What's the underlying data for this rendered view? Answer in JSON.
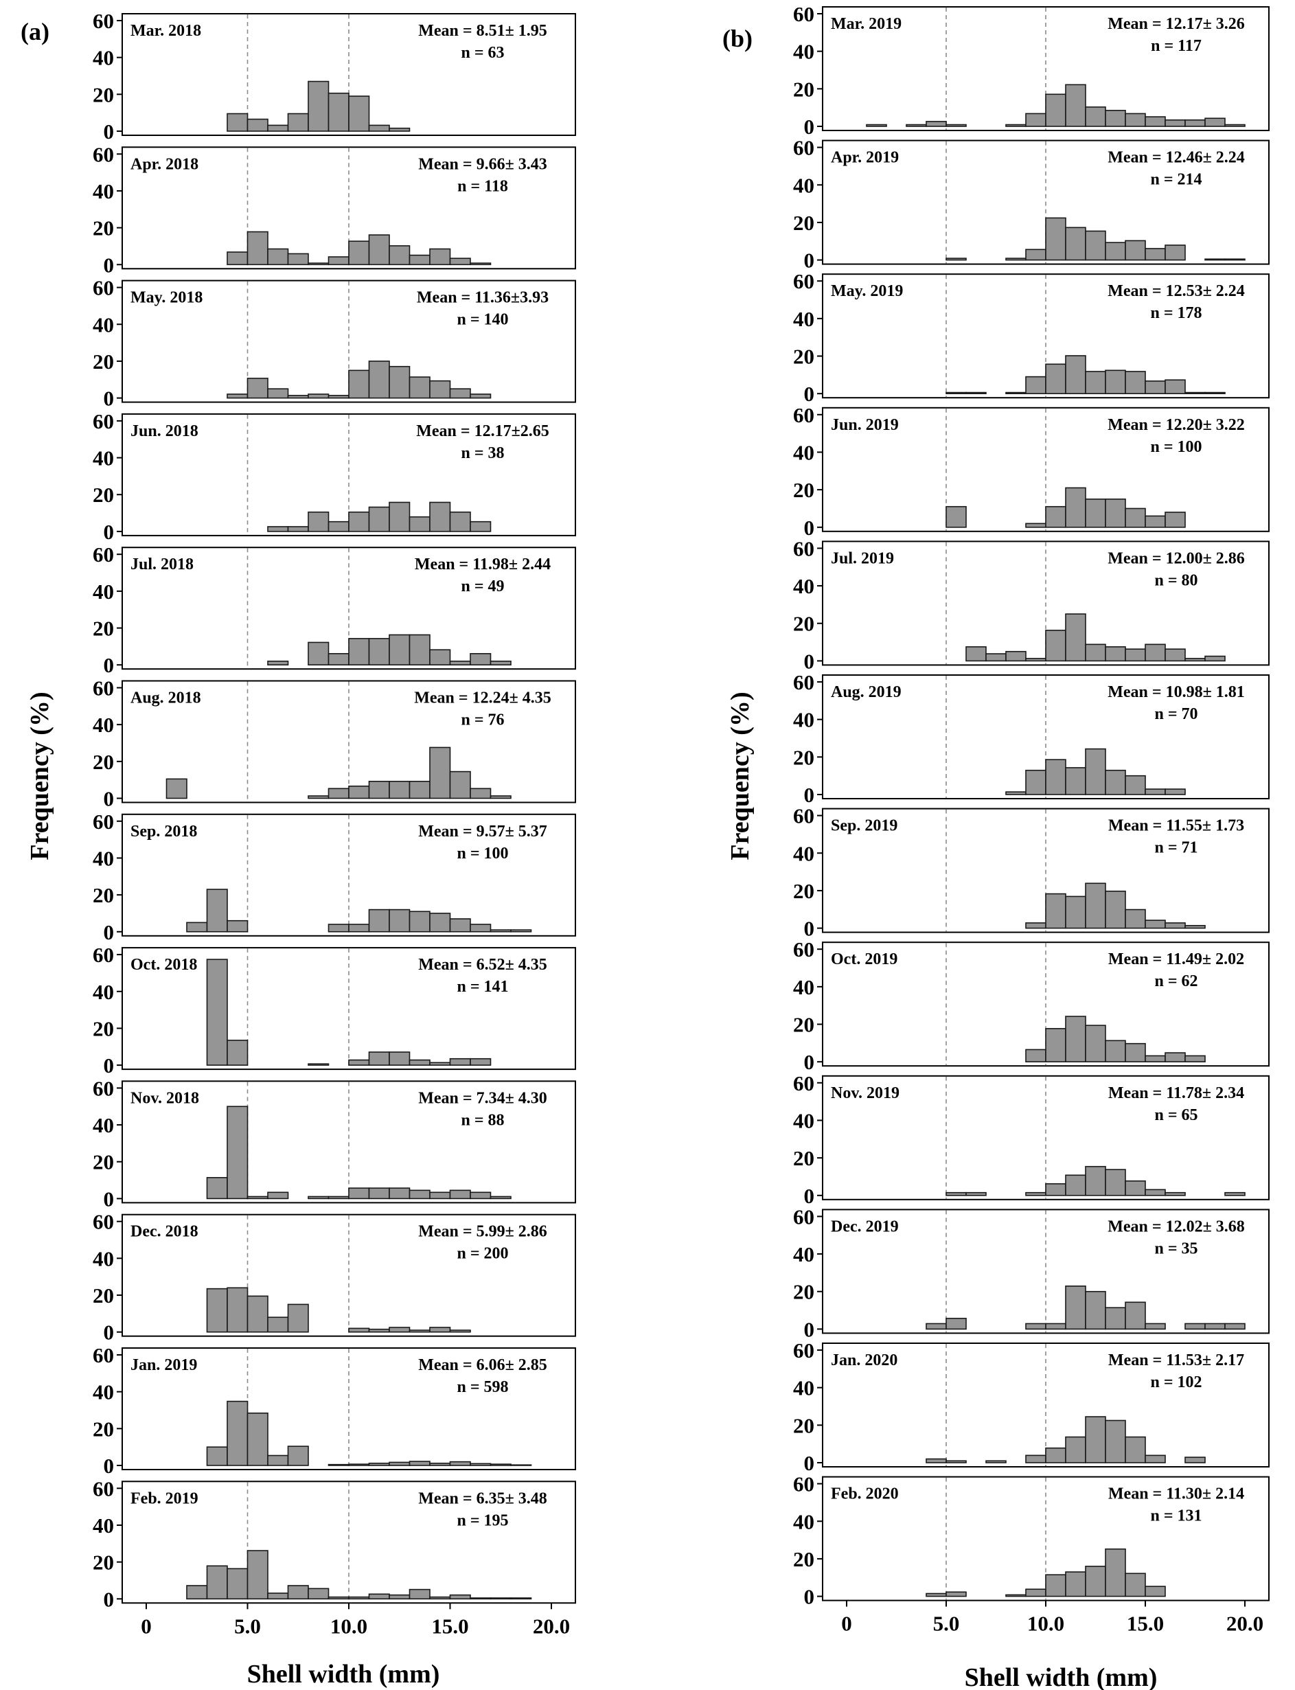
{
  "figure": {
    "y_axis_title": "Frequency (%)",
    "x_axis_title": "Shell width (mm)",
    "x_tick_labels": [
      "0",
      "5.0",
      "10.0",
      "15.0",
      "20.0"
    ],
    "y_tick_labels": [
      "0",
      "20",
      "40",
      "60"
    ],
    "bar_color": "#959595",
    "reference_line_color": "#8a8a8a"
  },
  "chart_data": [
    {
      "panel": "(a)",
      "type": "bar",
      "bin_width_mm": 1,
      "bin_starts": [
        0,
        1,
        2,
        3,
        4,
        5,
        6,
        7,
        8,
        9,
        10,
        11,
        12,
        13,
        14,
        15,
        16,
        17,
        18,
        19
      ],
      "xlim": [
        0,
        20
      ],
      "ylim": [
        0,
        60
      ],
      "reference_lines": [
        5,
        10
      ],
      "xlabel": "Shell width (mm)",
      "ylabel": "Frequency (%)",
      "series": [
        {
          "name": "Mar. 2018",
          "mean": "Mean = 8.51± 1.95",
          "n": "n = 63",
          "values": [
            0,
            0,
            0,
            0,
            9.5,
            6.5,
            3.2,
            9.5,
            27,
            20.6,
            19,
            3.2,
            1.6,
            0,
            0,
            0,
            0,
            0,
            0,
            0
          ]
        },
        {
          "name": "Apr. 2018",
          "mean": "Mean = 9.66± 3.43",
          "n": "n = 118",
          "values": [
            0,
            0,
            0,
            0,
            6.8,
            17.8,
            8.5,
            5.9,
            0.8,
            4.2,
            12.7,
            16.1,
            10.2,
            5.1,
            8.5,
            3.4,
            0.8,
            0,
            0,
            0
          ]
        },
        {
          "name": "May. 2018",
          "mean": "Mean = 11.36±3.93",
          "n": "n = 140",
          "values": [
            0,
            0,
            0,
            0,
            2.1,
            10.7,
            5,
            1.4,
            2.1,
            1.4,
            15,
            20,
            17.1,
            11.4,
            9.3,
            5,
            2.1,
            0,
            0,
            0
          ]
        },
        {
          "name": "Jun. 2018",
          "mean": "Mean = 12.17±2.65",
          "n": "n = 38",
          "values": [
            0,
            0,
            0,
            0,
            0,
            0,
            2.6,
            2.6,
            10.5,
            5.3,
            10.5,
            13.2,
            15.8,
            7.9,
            15.8,
            10.5,
            5.3,
            0,
            0,
            0
          ]
        },
        {
          "name": "Jul. 2018",
          "mean": "Mean = 11.98± 2.44",
          "n": "n = 49",
          "values": [
            0,
            0,
            0,
            0,
            0,
            0,
            2,
            0,
            12.2,
            6.1,
            14.3,
            14.3,
            16.3,
            16.3,
            8.2,
            2,
            6.1,
            2,
            0,
            0
          ]
        },
        {
          "name": "Aug. 2018",
          "mean": "Mean = 12.24± 4.35",
          "n": "n = 76",
          "values": [
            0,
            10.5,
            0,
            0,
            0,
            0,
            0,
            0,
            1.3,
            5.3,
            6.6,
            9.2,
            9.2,
            9.2,
            27.6,
            14.5,
            5.3,
            1.3,
            0,
            0
          ]
        },
        {
          "name": "Sep. 2018",
          "mean": "Mean = 9.57± 5.37",
          "n": "n = 100",
          "values": [
            0,
            0,
            5,
            23,
            6,
            0,
            0,
            0,
            0,
            4,
            4,
            12,
            12,
            11,
            10,
            7,
            4,
            1,
            1,
            0
          ]
        },
        {
          "name": "Oct. 2018",
          "mean": "Mean = 6.52± 4.35",
          "n": "n = 141",
          "values": [
            0,
            0,
            0,
            57.4,
            13.5,
            0,
            0,
            0,
            0.7,
            0,
            2.8,
            7.1,
            7.1,
            2.8,
            1.4,
            3.5,
            3.5,
            0,
            0,
            0
          ]
        },
        {
          "name": "Nov. 2018",
          "mean": "Mean = 7.34± 4.30",
          "n": "n = 88",
          "values": [
            0,
            0,
            0,
            11.4,
            50,
            1.1,
            3.4,
            0,
            1.1,
            1.1,
            5.7,
            5.7,
            5.7,
            4.5,
            3.4,
            4.5,
            3.4,
            1.1,
            0,
            0
          ]
        },
        {
          "name": "Dec. 2018",
          "mean": "Mean = 5.99± 2.86",
          "n": "n = 200",
          "values": [
            0,
            0,
            0,
            23.5,
            24,
            19.5,
            8,
            15,
            0,
            0,
            2,
            1.5,
            2.5,
            1,
            2.5,
            1,
            0,
            0,
            0,
            0
          ]
        },
        {
          "name": "Jan. 2019",
          "mean": "Mean = 6.06± 2.85",
          "n": "n = 598",
          "values": [
            0,
            0,
            0,
            10,
            34.8,
            28.4,
            5.4,
            10.4,
            0,
            0.5,
            0.7,
            1.2,
            1.7,
            2.2,
            1.2,
            2,
            1,
            0.7,
            0.3,
            0
          ]
        },
        {
          "name": "Feb. 2019",
          "mean": "Mean = 6.35± 3.48",
          "n": "n = 195",
          "values": [
            0,
            0,
            7.2,
            17.9,
            16.4,
            26.2,
            3.1,
            7.2,
            5.6,
            1,
            1,
            2.6,
            2.1,
            5.1,
            1,
            2.1,
            0.5,
            0.5,
            0.5,
            0
          ]
        }
      ]
    },
    {
      "panel": "(b)",
      "type": "bar",
      "bin_width_mm": 1,
      "bin_starts": [
        0,
        1,
        2,
        3,
        4,
        5,
        6,
        7,
        8,
        9,
        10,
        11,
        12,
        13,
        14,
        15,
        16,
        17,
        18,
        19
      ],
      "xlim": [
        0,
        20
      ],
      "ylim": [
        0,
        60
      ],
      "reference_lines": [
        5,
        10
      ],
      "xlabel": "Shell width (mm)",
      "ylabel": "Frequency (%)",
      "series": [
        {
          "name": "Mar. 2019",
          "mean": "Mean = 12.17± 3.26",
          "n": "n = 117",
          "values": [
            0,
            0.9,
            0,
            0.9,
            2.6,
            0.9,
            0,
            0,
            0.9,
            6.8,
            17.1,
            22.2,
            10.3,
            8.5,
            6.8,
            5.1,
            3.4,
            3.4,
            4.3,
            0.9
          ]
        },
        {
          "name": "Apr. 2019",
          "mean": "Mean = 12.46± 2.24",
          "n": "n = 214",
          "values": [
            0,
            0,
            0,
            0,
            0,
            0.9,
            0,
            0,
            0.9,
            5.6,
            22.4,
            17.3,
            15.4,
            9.3,
            10.3,
            6.1,
            7.9,
            0,
            0.5,
            0.5
          ]
        },
        {
          "name": "May. 2019",
          "mean": "Mean = 12.53± 2.24",
          "n": "n = 178",
          "values": [
            0,
            0,
            0,
            0,
            0,
            0.6,
            0.6,
            0,
            0.6,
            9,
            15.7,
            20.2,
            11.8,
            12.4,
            11.8,
            6.7,
            7.3,
            0.6,
            0.6,
            0
          ]
        },
        {
          "name": "Jun. 2019",
          "mean": "Mean = 12.20± 3.22",
          "n": "n = 100",
          "values": [
            0,
            0,
            0,
            0,
            0,
            11,
            0,
            0,
            0,
            2,
            11,
            21,
            15,
            15,
            10,
            6,
            8,
            0,
            0,
            0
          ]
        },
        {
          "name": "Jul. 2019",
          "mean": "Mean = 12.00± 2.86",
          "n": "n = 80",
          "values": [
            0,
            0,
            0,
            0,
            0,
            0,
            7.5,
            3.8,
            5,
            1.3,
            16.3,
            25,
            8.8,
            7.5,
            6.3,
            8.8,
            6.3,
            1.3,
            2.5,
            0
          ]
        },
        {
          "name": "Aug. 2019",
          "mean": "Mean = 10.98± 1.81",
          "n": "n = 70",
          "values": [
            0,
            0,
            0,
            0,
            0,
            0,
            0,
            0,
            1.4,
            12.9,
            18.6,
            14.3,
            24.3,
            12.9,
            10,
            2.9,
            2.9,
            0,
            0,
            0
          ]
        },
        {
          "name": "Sep. 2019",
          "mean": "Mean = 11.55± 1.73",
          "n": "n = 71",
          "values": [
            0,
            0,
            0,
            0,
            0,
            0,
            0,
            0,
            0,
            2.8,
            18.3,
            16.9,
            23.9,
            19.7,
            9.9,
            4.2,
            2.8,
            1.4,
            0,
            0
          ]
        },
        {
          "name": "Oct. 2019",
          "mean": "Mean = 11.49± 2.02",
          "n": "n = 62",
          "values": [
            0,
            0,
            0,
            0,
            0,
            0,
            0,
            0,
            0,
            6.5,
            17.7,
            24.2,
            19.4,
            11.3,
            9.7,
            3.2,
            4.8,
            3.2,
            0,
            0
          ]
        },
        {
          "name": "Nov. 2019",
          "mean": "Mean = 11.78± 2.34",
          "n": "n = 65",
          "values": [
            0,
            0,
            0,
            0,
            0,
            1.5,
            1.5,
            0,
            0,
            1.5,
            6.2,
            10.8,
            15.4,
            13.8,
            7.7,
            3.1,
            1.5,
            0,
            0,
            1.5
          ]
        },
        {
          "name": "Dec. 2019",
          "mean": "Mean = 12.02± 3.68",
          "n": "n = 35",
          "values": [
            0,
            0,
            0,
            0,
            2.9,
            5.7,
            0,
            0,
            0,
            2.9,
            2.9,
            22.9,
            20,
            11.4,
            14.3,
            2.9,
            0,
            2.9,
            2.9,
            2.9
          ]
        },
        {
          "name": "Jan. 2020",
          "mean": "Mean = 11.53± 2.17",
          "n": "n = 102",
          "values": [
            0,
            0,
            0,
            0,
            2,
            1,
            0,
            1,
            0,
            3.9,
            7.8,
            13.7,
            24.5,
            22.5,
            13.7,
            3.9,
            0,
            2.9,
            0,
            0
          ]
        },
        {
          "name": "Feb. 2020",
          "mean": "Mean = 11.30± 2.14",
          "n": "n = 131",
          "values": [
            0,
            0,
            0,
            0,
            1.5,
            2.3,
            0,
            0,
            0.8,
            3.8,
            11.5,
            13,
            16,
            25.2,
            12.2,
            5.3,
            0,
            0,
            0,
            0
          ]
        }
      ]
    }
  ]
}
